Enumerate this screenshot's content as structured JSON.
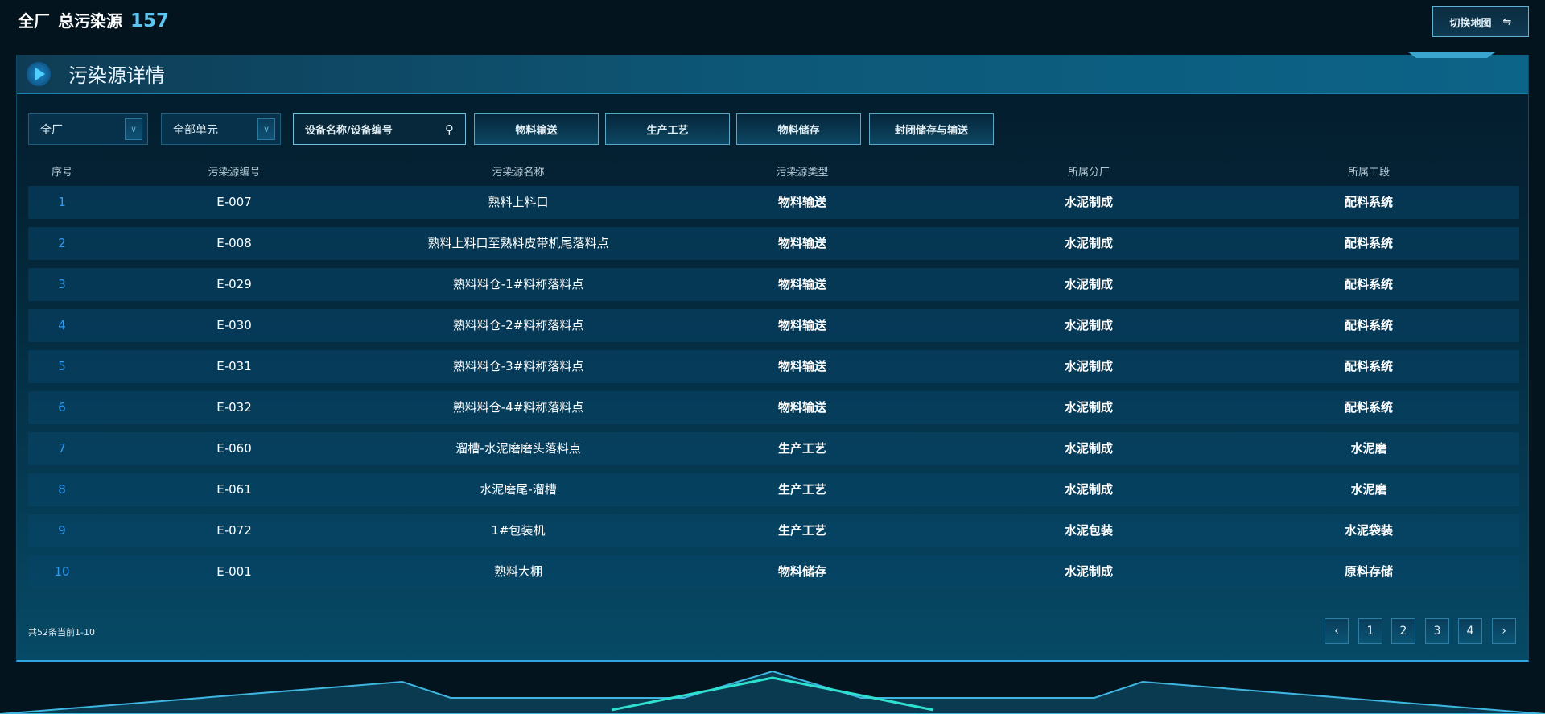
{
  "header": {
    "scope": "全厂",
    "label": "总污染源",
    "count": "157",
    "switch_label": "切换地图",
    "switch_icon": "swap-arrows-icon"
  },
  "panel": {
    "title": "污染源详情"
  },
  "filters": {
    "plant_select": "全厂",
    "unit_select": "全部单元",
    "search_placeholder": "设备名称/设备编号",
    "type_buttons": [
      "物料输送",
      "生产工艺",
      "物料储存",
      "封闭储存与输送"
    ]
  },
  "table": {
    "columns": [
      "序号",
      "污染源编号",
      "污染源名称",
      "污染源类型",
      "所属分厂",
      "所属工段"
    ],
    "rows": [
      [
        "1",
        "E-007",
        "熟料上料口",
        "物料输送",
        "水泥制成",
        "配料系统"
      ],
      [
        "2",
        "E-008",
        "熟料上料口至熟料皮带机尾落料点",
        "物料输送",
        "水泥制成",
        "配料系统"
      ],
      [
        "3",
        "E-029",
        "熟料料仓-1#料称落料点",
        "物料输送",
        "水泥制成",
        "配料系统"
      ],
      [
        "4",
        "E-030",
        "熟料料仓-2#料称落料点",
        "物料输送",
        "水泥制成",
        "配料系统"
      ],
      [
        "5",
        "E-031",
        "熟料料仓-3#料称落料点",
        "物料输送",
        "水泥制成",
        "配料系统"
      ],
      [
        "6",
        "E-032",
        "熟料料仓-4#料称落料点",
        "物料输送",
        "水泥制成",
        "配料系统"
      ],
      [
        "7",
        "E-060",
        "溜槽-水泥磨磨头落料点",
        "生产工艺",
        "水泥制成",
        "水泥磨"
      ],
      [
        "8",
        "E-061",
        "水泥磨尾-溜槽",
        "生产工艺",
        "水泥制成",
        "水泥磨"
      ],
      [
        "9",
        "E-072",
        "1#包装机",
        "生产工艺",
        "水泥包装",
        "水泥袋装"
      ],
      [
        "10",
        "E-001",
        "熟料大棚",
        "物料储存",
        "水泥制成",
        "原料存储"
      ]
    ]
  },
  "pagination": {
    "summary": "共52条当前1-10",
    "prev": "‹",
    "next": "›",
    "pages": [
      "1",
      "2",
      "3",
      "4"
    ]
  },
  "colors": {
    "accent": "#5cc5f2",
    "index": "#2e9bf0",
    "border": "#2fa6e0"
  }
}
